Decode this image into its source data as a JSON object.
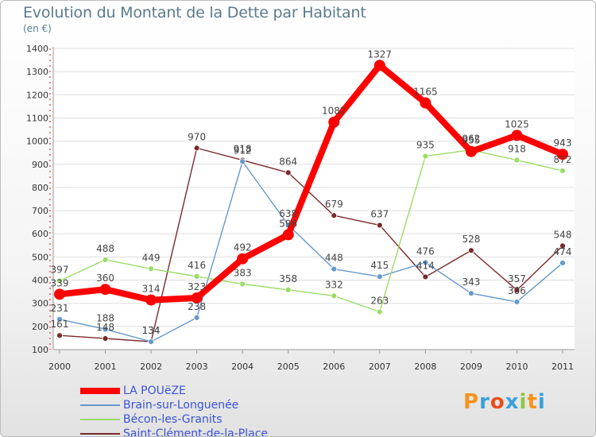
{
  "title": "Evolution du Montant de la Dette par Habitant",
  "unit": "(en €)",
  "logo": "Proxiti",
  "chart_data": {
    "type": "line",
    "title": "Evolution du Montant de la Dette par Habitant",
    "subtitle": "(en €)",
    "x": [
      "2000",
      "2001",
      "2002",
      "2003",
      "2004",
      "2005",
      "2006",
      "2007",
      "2008",
      "2009",
      "2010",
      "2011"
    ],
    "ylim": [
      100,
      1400
    ],
    "yticks": [
      100,
      200,
      300,
      400,
      500,
      600,
      700,
      800,
      900,
      1000,
      1100,
      1200,
      1300,
      1400
    ],
    "grid": "horizontal",
    "legend_position": "bottom-left",
    "series": [
      {
        "name": "LA POUëZE",
        "color": "#ff0000",
        "values": [
          339,
          360,
          314,
          323,
          492,
          596,
          1082,
          1327,
          1165,
          955,
          1025,
          943
        ],
        "labels": [
          "339",
          "360",
          "314",
          "323",
          "492",
          "596",
          "1082",
          "1327",
          "1165",
          "955",
          "1025",
          "943"
        ]
      },
      {
        "name": "Brain-sur-Longuenée",
        "color": "#6699cc",
        "values": [
          231,
          188,
          134,
          238,
          912,
          638,
          448,
          415,
          476,
          343,
          306,
          474
        ],
        "labels": [
          "231",
          "188",
          "134",
          "238",
          "912",
          "638",
          "448",
          "415",
          "476",
          "343",
          "306",
          "474"
        ]
      },
      {
        "name": "Bécon-les-Granits",
        "color": "#99dd66",
        "values": [
          397,
          488,
          449,
          416,
          383,
          358,
          332,
          263,
          935,
          962,
          918,
          872
        ],
        "labels": [
          "397",
          "488",
          "449",
          "416",
          "383",
          "358",
          "332",
          "263",
          "935",
          "962",
          "918",
          "872"
        ]
      },
      {
        "name": "Saint-Clément-de-la-Place",
        "color": "#7a2a2a",
        "values": [
          161,
          148,
          134,
          970,
          918,
          864,
          679,
          637,
          414,
          528,
          357,
          548
        ],
        "labels": [
          "161",
          "148",
          "134",
          "970",
          "918",
          "864",
          "679",
          "637",
          "414",
          "528",
          "357",
          "548"
        ]
      }
    ]
  }
}
